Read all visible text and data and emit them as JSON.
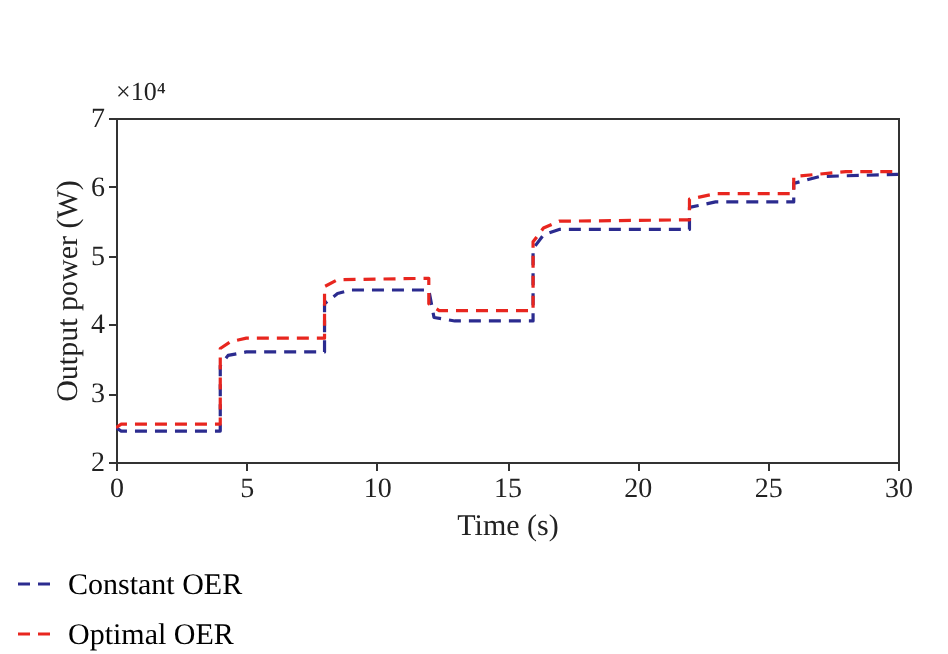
{
  "chart_data": {
    "type": "line",
    "xlabel": "Time (s)",
    "ylabel": "Output power (W)",
    "annotations": [
      "×10⁴"
    ],
    "xlim": [
      0,
      30
    ],
    "xticks": [
      0,
      5,
      10,
      15,
      20,
      25,
      30
    ],
    "ylim": [
      2,
      7
    ],
    "yticks": [
      2,
      3,
      4,
      5,
      6,
      7
    ],
    "grid": false,
    "legend": "bottom left",
    "line_style": "dashed",
    "series": [
      {
        "name": "Constant OER",
        "color": "#2b2b8f",
        "x": [
          0,
          0.2,
          4,
          4,
          4.3,
          5,
          8,
          8,
          8.5,
          9,
          12,
          12.2,
          13,
          16,
          16,
          16.4,
          17,
          22,
          22,
          23,
          26,
          26,
          27,
          30
        ],
        "values": [
          2.5,
          2.45,
          2.45,
          3.4,
          3.55,
          3.6,
          3.6,
          4.3,
          4.45,
          4.5,
          4.5,
          4.1,
          4.05,
          4.05,
          5.1,
          5.3,
          5.38,
          5.38,
          5.7,
          5.78,
          5.78,
          6.05,
          6.15,
          6.18
        ]
      },
      {
        "name": "Optimal OER",
        "color": "#e8261f",
        "x": [
          0,
          0.2,
          4,
          4,
          4.4,
          5,
          8,
          8,
          8.5,
          12,
          12,
          12.4,
          16,
          16,
          16.4,
          17,
          22,
          22,
          23,
          26,
          26,
          28,
          30
        ],
        "values": [
          2.5,
          2.55,
          2.55,
          3.65,
          3.75,
          3.8,
          3.8,
          4.55,
          4.65,
          4.67,
          4.3,
          4.2,
          4.2,
          5.2,
          5.4,
          5.5,
          5.52,
          5.82,
          5.9,
          5.9,
          6.15,
          6.22,
          6.22
        ]
      }
    ]
  }
}
